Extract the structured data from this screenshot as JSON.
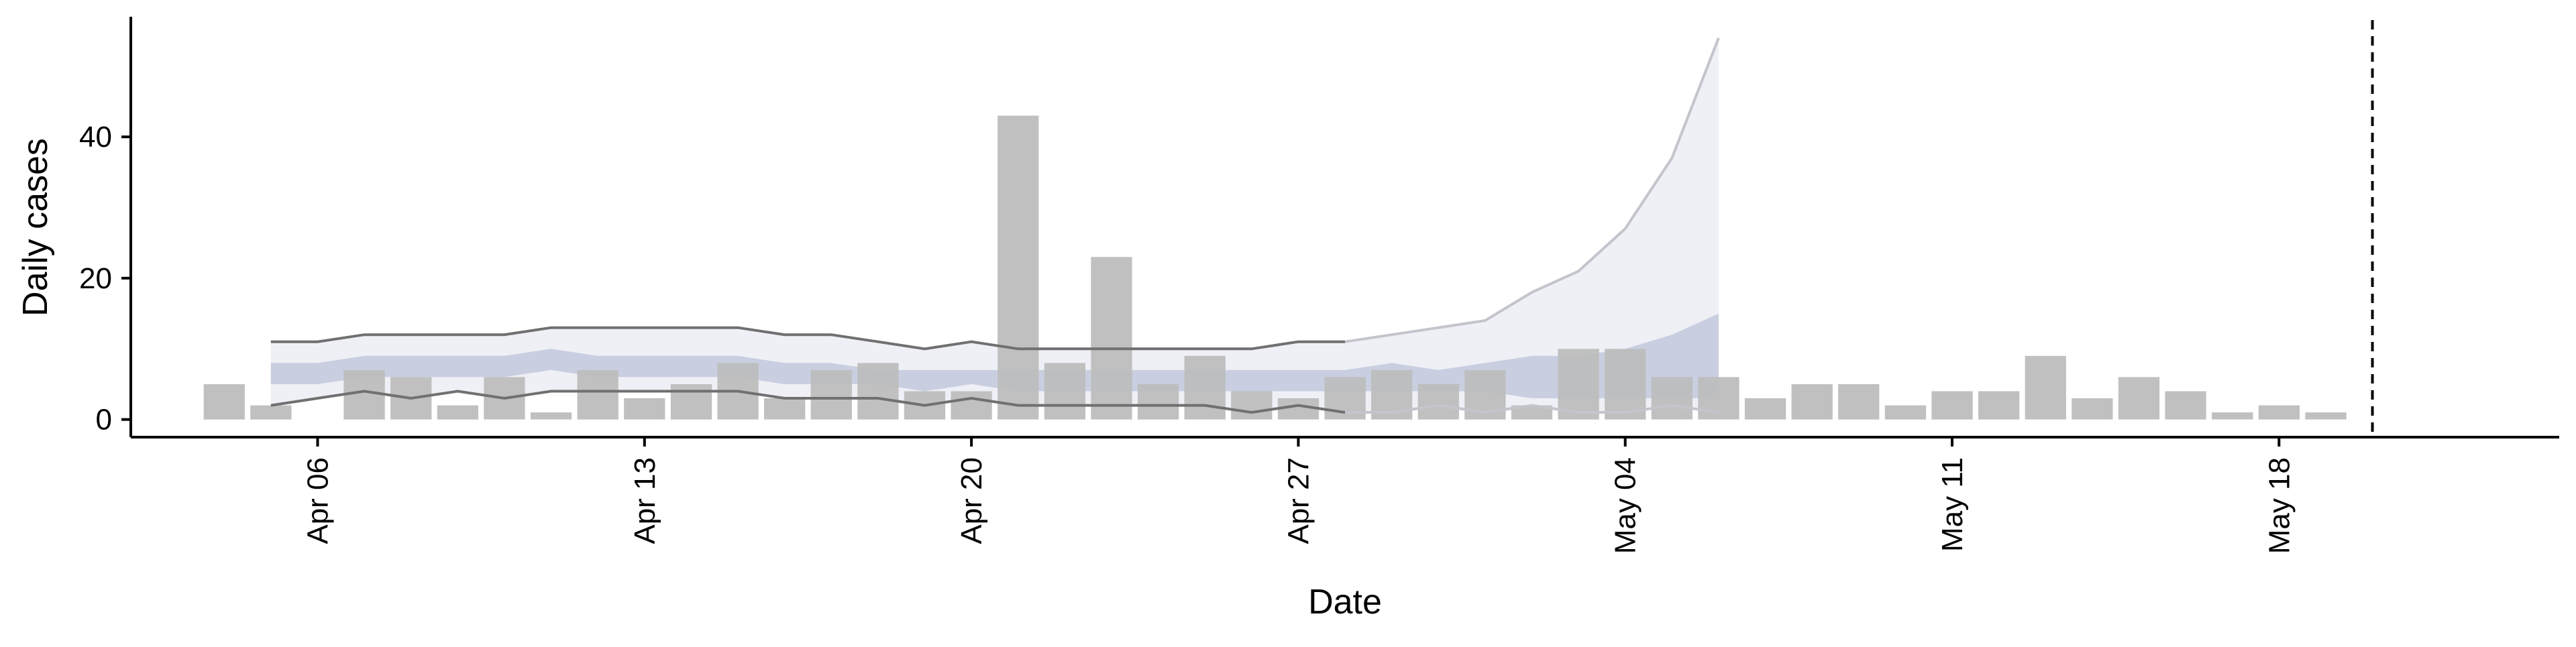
{
  "chart_data": {
    "type": "bar",
    "title": "",
    "xlabel": "Date",
    "ylabel": "Daily cases",
    "x_tick_labels": [
      "Apr 06",
      "Apr 13",
      "Apr 20",
      "Apr 27",
      "May 04",
      "May 11",
      "May 18"
    ],
    "x_tick_dates": [
      "2020-04-06",
      "2020-04-13",
      "2020-04-20",
      "2020-04-27",
      "2020-05-04",
      "2020-05-11",
      "2020-05-18"
    ],
    "y_ticks": [
      0,
      20,
      40
    ],
    "xlim": [
      "2020-04-02",
      "2020-05-24"
    ],
    "ylim": [
      -2.5,
      57
    ],
    "grid": false,
    "legend": "none",
    "vertical_line_date": "2020-05-20",
    "colors": {
      "bars": "#bdbdbd",
      "outer_band": "#eef0f6",
      "inner_band": "#c9cfe0",
      "outer_band_fit": "#b8bfd6",
      "line_dark": "#707070",
      "line_light": "#c4c4cc"
    },
    "bars": {
      "dates": [
        "2020-04-04",
        "2020-04-05",
        "2020-04-06",
        "2020-04-07",
        "2020-04-08",
        "2020-04-09",
        "2020-04-10",
        "2020-04-11",
        "2020-04-12",
        "2020-04-13",
        "2020-04-14",
        "2020-04-15",
        "2020-04-16",
        "2020-04-17",
        "2020-04-18",
        "2020-04-19",
        "2020-04-20",
        "2020-04-21",
        "2020-04-22",
        "2020-04-23",
        "2020-04-24",
        "2020-04-25",
        "2020-04-26",
        "2020-04-27",
        "2020-04-28",
        "2020-04-29",
        "2020-04-30",
        "2020-05-01",
        "2020-05-02",
        "2020-05-03",
        "2020-05-04",
        "2020-05-05",
        "2020-05-06",
        "2020-05-07",
        "2020-05-08",
        "2020-05-09",
        "2020-05-10",
        "2020-05-11",
        "2020-05-12",
        "2020-05-13",
        "2020-05-14",
        "2020-05-15",
        "2020-05-16",
        "2020-05-17",
        "2020-05-18",
        "2020-05-19",
        "2020-05-20"
      ],
      "values": [
        5,
        2,
        0,
        7,
        6,
        2,
        6,
        1,
        7,
        3,
        5,
        8,
        3,
        7,
        8,
        4,
        4,
        43,
        8,
        23,
        5,
        9,
        4,
        3,
        6,
        7,
        5,
        7,
        2,
        10,
        10,
        6,
        6,
        3,
        5,
        5,
        2,
        4,
        4,
        9,
        3,
        6,
        4,
        1,
        2,
        1,
        0
      ]
    },
    "estimate": {
      "dates": [
        "2020-04-05",
        "2020-04-06",
        "2020-04-07",
        "2020-04-08",
        "2020-04-09",
        "2020-04-10",
        "2020-04-11",
        "2020-04-12",
        "2020-04-13",
        "2020-04-14",
        "2020-04-15",
        "2020-04-16",
        "2020-04-17",
        "2020-04-18",
        "2020-04-19",
        "2020-04-20",
        "2020-04-21",
        "2020-04-22",
        "2020-04-23",
        "2020-04-24",
        "2020-04-25",
        "2020-04-26",
        "2020-04-27",
        "2020-04-28",
        "2020-04-29",
        "2020-04-30",
        "2020-05-01",
        "2020-05-02",
        "2020-05-03",
        "2020-05-04",
        "2020-05-05",
        "2020-05-06"
      ],
      "upper_90": [
        11,
        11,
        12,
        12,
        12,
        12,
        13,
        13,
        13,
        13,
        13,
        12,
        12,
        11,
        10,
        11,
        10,
        10,
        10,
        10,
        10,
        10,
        11,
        11,
        12,
        13,
        14,
        18,
        21,
        27,
        37,
        54
      ],
      "upper_50": [
        8,
        8,
        9,
        9,
        9,
        9,
        10,
        9,
        9,
        9,
        9,
        8,
        8,
        7,
        7,
        7,
        7,
        7,
        7,
        7,
        7,
        7,
        7,
        7,
        8,
        7,
        8,
        9,
        9,
        10,
        12,
        15
      ],
      "lower_50": [
        5,
        5,
        6,
        6,
        6,
        6,
        7,
        6,
        6,
        6,
        6,
        5,
        5,
        5,
        4,
        5,
        4,
        4,
        4,
        4,
        4,
        4,
        4,
        4,
        4,
        4,
        4,
        3,
        3,
        3,
        3,
        3
      ],
      "lower_90": [
        2,
        3,
        4,
        3,
        4,
        3,
        4,
        4,
        4,
        4,
        4,
        3,
        3,
        3,
        2,
        3,
        2,
        2,
        2,
        2,
        2,
        1,
        2,
        1,
        1,
        2,
        1,
        2,
        1,
        1,
        2,
        1
      ],
      "split_date": "2020-04-28"
    }
  }
}
